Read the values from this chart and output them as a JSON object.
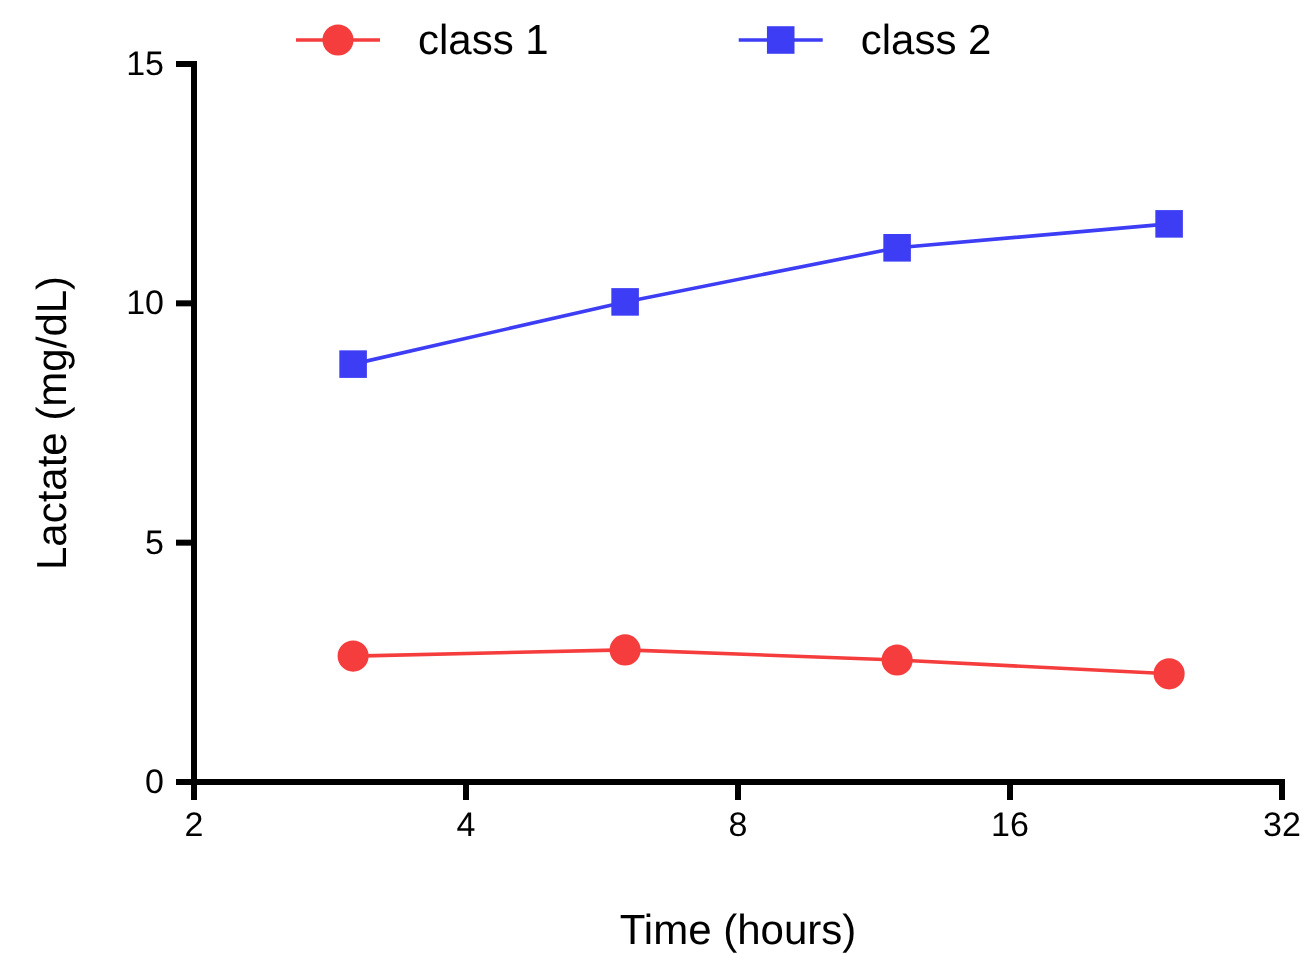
{
  "chart_data": {
    "type": "line",
    "xlabel": "Time (hours)",
    "ylabel": "Lactate (mg/dL)",
    "log": "x",
    "x": [
      3,
      6,
      12,
      24
    ],
    "series": [
      {
        "name": "class 1",
        "color": "#f53d3d",
        "marker": "circle",
        "values": [
          2.63,
          2.76,
          2.55,
          2.26
        ]
      },
      {
        "name": "class 2",
        "color": "#3d3df5",
        "marker": "square",
        "values": [
          8.73,
          10.03,
          11.16,
          11.66
        ]
      }
    ],
    "xlim": [
      2,
      32
    ],
    "xticks": [
      2,
      4,
      8,
      16,
      32
    ],
    "ylim": [
      0,
      15
    ],
    "yticks": [
      0,
      5,
      10,
      15
    ],
    "grid": false,
    "legend": "top"
  }
}
